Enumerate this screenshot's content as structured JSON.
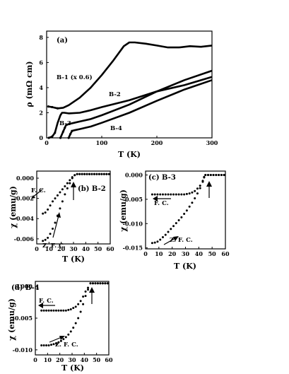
{
  "chart_data": [
    {
      "type": "line",
      "panel_label": "(a)",
      "xlabel": "T (K)",
      "ylabel": "ρ (mΩ cm)",
      "xlim": [
        0,
        300
      ],
      "ylim": [
        0,
        8.5
      ],
      "xticks": [
        "0",
        "100",
        "200",
        "300"
      ],
      "yticks": [
        "0",
        "2",
        "4",
        "6",
        "8"
      ],
      "series": [
        {
          "name": "B-1 (x 0.6)",
          "x": [
            3,
            10,
            20,
            30,
            40,
            60,
            80,
            100,
            120,
            140,
            150,
            160,
            180,
            200,
            220,
            240,
            260,
            280,
            300
          ],
          "y": [
            2.5,
            2.45,
            2.35,
            2.4,
            2.6,
            3.2,
            4.0,
            5.0,
            6.1,
            7.3,
            7.6,
            7.6,
            7.5,
            7.35,
            7.2,
            7.2,
            7.3,
            7.25,
            7.35
          ]
        },
        {
          "name": "B-2",
          "x": [
            4,
            10,
            15,
            20,
            25,
            28,
            32,
            40,
            60,
            80,
            100,
            150,
            200,
            250,
            300
          ],
          "y": [
            0.0,
            0.1,
            0.4,
            1.2,
            1.8,
            2.0,
            2.0,
            1.95,
            2.0,
            2.2,
            2.45,
            3.0,
            3.7,
            4.2,
            4.85
          ]
        },
        {
          "name": "B-3",
          "x": [
            25,
            30,
            33,
            35,
            40,
            50,
            60,
            80,
            100,
            150,
            200,
            250,
            300
          ],
          "y": [
            0.0,
            0.5,
            0.8,
            1.0,
            1.1,
            1.2,
            1.3,
            1.5,
            1.8,
            2.65,
            3.7,
            4.6,
            5.35
          ]
        },
        {
          "name": "B-4",
          "x": [
            40,
            43,
            46,
            50,
            60,
            80,
            100,
            150,
            200,
            250,
            300
          ],
          "y": [
            0.0,
            0.3,
            0.55,
            0.6,
            0.7,
            0.9,
            1.2,
            2.0,
            2.95,
            3.85,
            4.6
          ]
        }
      ]
    },
    {
      "type": "scatter",
      "panel_label": "(b) B-2",
      "xlabel": "T (K)",
      "ylabel": "χ (emu/g)",
      "xlim": [
        0,
        60
      ],
      "ylim": [
        -0.0065,
        0.0007
      ],
      "xticks": [
        "0",
        "10",
        "20",
        "30",
        "40",
        "50",
        "60"
      ],
      "yticks": [
        "0.000",
        "-0.002",
        "-0.004",
        "-0.006"
      ],
      "annotations": [
        "F. C.",
        "Z. F. C."
      ],
      "series": [
        {
          "name": "F. C.",
          "x": [
            5,
            7,
            9,
            11,
            13,
            15,
            17,
            19,
            21,
            23,
            25,
            27,
            29,
            31,
            33,
            35,
            37,
            39,
            41,
            43,
            45,
            47,
            49,
            51,
            53,
            55,
            57,
            59
          ],
          "y": [
            -0.0035,
            -0.0034,
            -0.0031,
            -0.0027,
            -0.0023,
            -0.002,
            -0.0017,
            -0.0014,
            -0.0011,
            -0.0008,
            -0.0005,
            -0.0002,
            0.0001,
            0.0003,
            0.0004,
            0.0004,
            0.0004,
            0.0004,
            0.0004,
            0.0004,
            0.0004,
            0.0004,
            0.0004,
            0.0004,
            0.0004,
            0.0004,
            0.0004,
            0.0004
          ]
        },
        {
          "name": "Z. F. C.",
          "x": [
            5,
            7,
            9,
            11,
            13,
            15,
            17,
            19,
            21,
            23,
            25,
            27,
            29,
            31,
            33,
            35,
            37,
            39,
            41,
            43,
            45,
            47,
            49,
            51,
            53,
            55,
            57,
            59
          ],
          "y": [
            -0.0062,
            -0.0061,
            -0.0059,
            -0.0055,
            -0.005,
            -0.0044,
            -0.0037,
            -0.003,
            -0.0023,
            -0.0016,
            -0.001,
            -0.0005,
            0.0,
            0.0003,
            0.0004,
            0.0004,
            0.0004,
            0.0004,
            0.0004,
            0.0004,
            0.0004,
            0.0004,
            0.0004,
            0.0004,
            0.0004,
            0.0004,
            0.0004,
            0.0004
          ]
        }
      ]
    },
    {
      "type": "scatter",
      "panel_label": "(c) B-3",
      "xlabel": "T (K)",
      "ylabel": "χ (emu/g)",
      "xlim": [
        0,
        60
      ],
      "ylim": [
        -0.0152,
        0.0008
      ],
      "xticks": [
        "0",
        "10",
        "20",
        "30",
        "40",
        "50",
        "60"
      ],
      "yticks": [
        "0.000",
        "-0.005",
        "-0.010",
        "-0.015"
      ],
      "annotations": [
        "F. C.",
        "Z. F. C."
      ],
      "series": [
        {
          "name": "F. C.",
          "x": [
            5,
            7,
            9,
            11,
            13,
            15,
            17,
            19,
            21,
            23,
            25,
            27,
            29,
            31,
            33,
            35,
            37,
            39,
            41,
            43,
            44,
            45,
            47,
            49,
            51,
            53,
            55,
            57,
            59
          ],
          "y": [
            -0.004,
            -0.004,
            -0.004,
            -0.004,
            -0.004,
            -0.004,
            -0.004,
            -0.004,
            -0.004,
            -0.004,
            -0.004,
            -0.004,
            -0.004,
            -0.0039,
            -0.0038,
            -0.0036,
            -0.0033,
            -0.0028,
            -0.0022,
            -0.0012,
            -0.0004,
            0.0,
            0.0,
            0.0,
            0.0,
            0.0,
            0.0,
            0.0,
            0.0
          ]
        },
        {
          "name": "Z. F. C.",
          "x": [
            5,
            7,
            9,
            11,
            13,
            15,
            17,
            19,
            21,
            23,
            25,
            27,
            29,
            31,
            33,
            35,
            37,
            39,
            41,
            43,
            44,
            45,
            47,
            49,
            51,
            53,
            55,
            57,
            59
          ],
          "y": [
            -0.014,
            -0.0139,
            -0.0137,
            -0.0133,
            -0.0128,
            -0.0123,
            -0.0117,
            -0.0111,
            -0.0105,
            -0.0099,
            -0.0093,
            -0.0087,
            -0.008,
            -0.0073,
            -0.0065,
            -0.0057,
            -0.0048,
            -0.0038,
            -0.0027,
            -0.0014,
            -0.0005,
            0.0,
            0.0,
            0.0,
            0.0,
            0.0,
            0.0,
            0.0,
            0.0
          ]
        }
      ]
    },
    {
      "type": "scatter",
      "panel_label": "(d) B-4",
      "xlabel": "T (K)",
      "ylabel": "χ (emu/g)",
      "xlim": [
        0,
        60
      ],
      "ylim": [
        -0.0108,
        0.0008
      ],
      "xticks": [
        "0",
        "10",
        "20",
        "30",
        "40",
        "50",
        "60"
      ],
      "yticks": [
        "0.000",
        "-0.005",
        "-0.010"
      ],
      "annotations": [
        "F. C.",
        "Z. F. C."
      ],
      "series": [
        {
          "name": "F. C.",
          "x": [
            5,
            7,
            9,
            11,
            13,
            15,
            17,
            19,
            21,
            23,
            25,
            27,
            29,
            31,
            33,
            35,
            37,
            39,
            41,
            43,
            45,
            47,
            49,
            51,
            53,
            55,
            57,
            59
          ],
          "y": [
            -0.0038,
            -0.0038,
            -0.0038,
            -0.0038,
            -0.0038,
            -0.0038,
            -0.0038,
            -0.0038,
            -0.0038,
            -0.0038,
            -0.0038,
            -0.0037,
            -0.0036,
            -0.0034,
            -0.0032,
            -0.0028,
            -0.0023,
            -0.0016,
            -0.0008,
            -0.0002,
            0.0005,
            0.0005,
            0.0005,
            0.0005,
            0.0005,
            0.0005,
            0.0005,
            0.0005
          ]
        },
        {
          "name": "Z. F. C.",
          "x": [
            5,
            7,
            9,
            11,
            13,
            15,
            17,
            19,
            21,
            23,
            25,
            27,
            29,
            31,
            33,
            35,
            37,
            39,
            41,
            43,
            45,
            47,
            49,
            51,
            53,
            55,
            57,
            59
          ],
          "y": [
            -0.0093,
            -0.0093,
            -0.0093,
            -0.0093,
            -0.0092,
            -0.0091,
            -0.009,
            -0.0088,
            -0.0086,
            -0.0083,
            -0.008,
            -0.0076,
            -0.0071,
            -0.0065,
            -0.0058,
            -0.005,
            -0.004,
            -0.0028,
            -0.0015,
            -0.0005,
            0.0005,
            0.0005,
            0.0005,
            0.0005,
            0.0005,
            0.0005,
            0.0005,
            0.0005
          ]
        }
      ]
    }
  ]
}
